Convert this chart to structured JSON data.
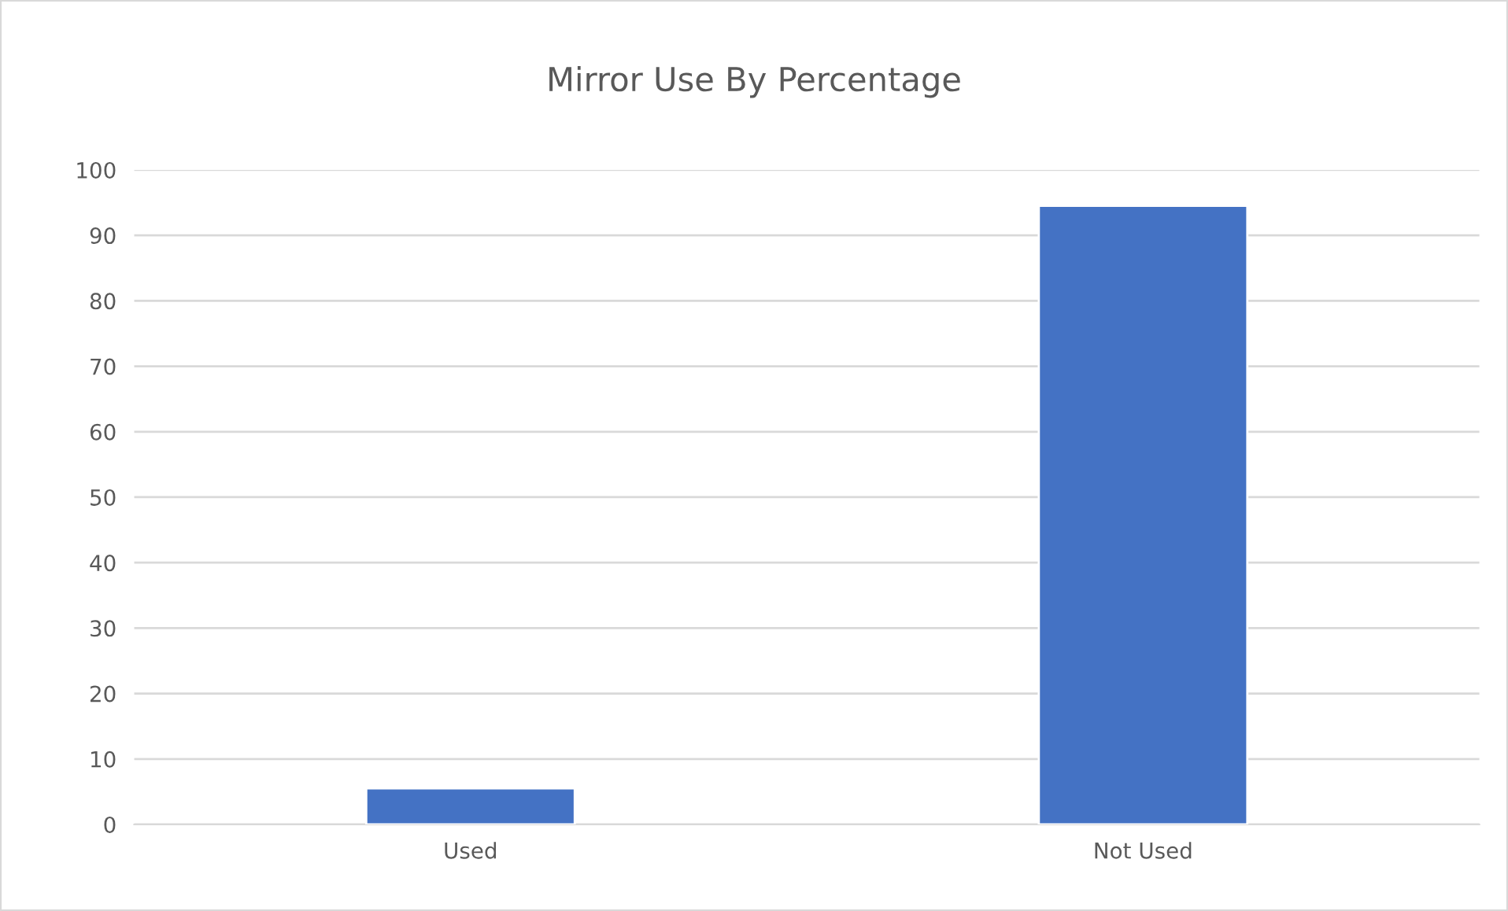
{
  "chart_data": {
    "type": "bar",
    "title": "Mirror Use By Percentage",
    "categories": [
      "Used",
      "Not Used"
    ],
    "values": [
      5.5,
      94.5
    ],
    "color": "#4472c4",
    "ylim": [
      0,
      100
    ],
    "yticks": [
      0,
      10,
      20,
      30,
      40,
      50,
      60,
      70,
      80,
      90,
      100
    ],
    "grid": "y"
  }
}
